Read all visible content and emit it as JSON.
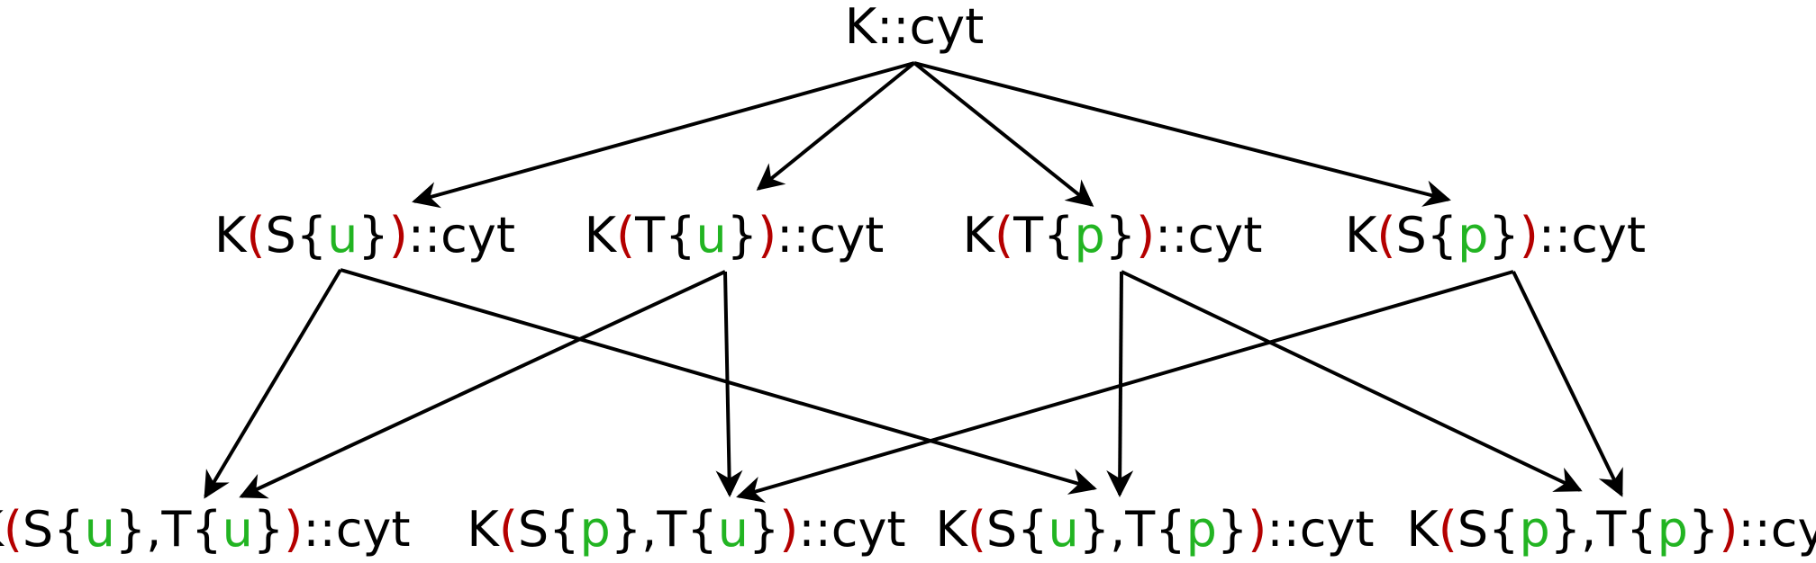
{
  "colors": {
    "text": "#000000",
    "paren": "#b40000",
    "state": "#22b422",
    "edge": "#000000"
  },
  "nodes": [
    {
      "id": "root",
      "segments": [
        {
          "text": "K::cyt",
          "role": "text"
        }
      ]
    },
    {
      "id": "S_u",
      "segments": [
        {
          "text": "K",
          "role": "text"
        },
        {
          "text": "(",
          "role": "paren"
        },
        {
          "text": "S{",
          "role": "text"
        },
        {
          "text": "u",
          "role": "state"
        },
        {
          "text": "}",
          "role": "text"
        },
        {
          "text": ")",
          "role": "paren"
        },
        {
          "text": "::cyt",
          "role": "text"
        }
      ]
    },
    {
      "id": "T_u",
      "segments": [
        {
          "text": "K",
          "role": "text"
        },
        {
          "text": "(",
          "role": "paren"
        },
        {
          "text": "T{",
          "role": "text"
        },
        {
          "text": "u",
          "role": "state"
        },
        {
          "text": "}",
          "role": "text"
        },
        {
          "text": ")",
          "role": "paren"
        },
        {
          "text": "::cyt",
          "role": "text"
        }
      ]
    },
    {
      "id": "T_p",
      "segments": [
        {
          "text": "K",
          "role": "text"
        },
        {
          "text": "(",
          "role": "paren"
        },
        {
          "text": "T{",
          "role": "text"
        },
        {
          "text": "p",
          "role": "state"
        },
        {
          "text": "}",
          "role": "text"
        },
        {
          "text": ")",
          "role": "paren"
        },
        {
          "text": "::cyt",
          "role": "text"
        }
      ]
    },
    {
      "id": "S_p",
      "segments": [
        {
          "text": "K",
          "role": "text"
        },
        {
          "text": "(",
          "role": "paren"
        },
        {
          "text": "S{",
          "role": "text"
        },
        {
          "text": "p",
          "role": "state"
        },
        {
          "text": "}",
          "role": "text"
        },
        {
          "text": ")",
          "role": "paren"
        },
        {
          "text": "::cyt",
          "role": "text"
        }
      ]
    },
    {
      "id": "Su_Tu",
      "segments": [
        {
          "text": "K",
          "role": "text"
        },
        {
          "text": "(",
          "role": "paren"
        },
        {
          "text": "S{",
          "role": "text"
        },
        {
          "text": "u",
          "role": "state"
        },
        {
          "text": "},T{",
          "role": "text"
        },
        {
          "text": "u",
          "role": "state"
        },
        {
          "text": "}",
          "role": "text"
        },
        {
          "text": ")",
          "role": "paren"
        },
        {
          "text": "::cyt",
          "role": "text"
        }
      ]
    },
    {
      "id": "Sp_Tu",
      "segments": [
        {
          "text": "K",
          "role": "text"
        },
        {
          "text": "(",
          "role": "paren"
        },
        {
          "text": "S{",
          "role": "text"
        },
        {
          "text": "p",
          "role": "state"
        },
        {
          "text": "},T{",
          "role": "text"
        },
        {
          "text": "u",
          "role": "state"
        },
        {
          "text": "}",
          "role": "text"
        },
        {
          "text": ")",
          "role": "paren"
        },
        {
          "text": "::cyt",
          "role": "text"
        }
      ]
    },
    {
      "id": "Su_Tp",
      "segments": [
        {
          "text": "K",
          "role": "text"
        },
        {
          "text": "(",
          "role": "paren"
        },
        {
          "text": "S{",
          "role": "text"
        },
        {
          "text": "u",
          "role": "state"
        },
        {
          "text": "},T{",
          "role": "text"
        },
        {
          "text": "p",
          "role": "state"
        },
        {
          "text": "}",
          "role": "text"
        },
        {
          "text": ")",
          "role": "paren"
        },
        {
          "text": "::cyt",
          "role": "text"
        }
      ]
    },
    {
      "id": "Sp_Tp",
      "segments": [
        {
          "text": "K",
          "role": "text"
        },
        {
          "text": "(",
          "role": "paren"
        },
        {
          "text": "S{",
          "role": "text"
        },
        {
          "text": "p",
          "role": "state"
        },
        {
          "text": "},T{",
          "role": "text"
        },
        {
          "text": "p",
          "role": "state"
        },
        {
          "text": "}",
          "role": "text"
        },
        {
          "text": ")",
          "role": "paren"
        },
        {
          "text": "::cyt",
          "role": "text"
        }
      ]
    }
  ],
  "edges": [
    {
      "from": "root",
      "to": "S_u"
    },
    {
      "from": "root",
      "to": "T_u"
    },
    {
      "from": "root",
      "to": "T_p"
    },
    {
      "from": "root",
      "to": "S_p"
    },
    {
      "from": "S_u",
      "to": "Su_Tu"
    },
    {
      "from": "S_u",
      "to": "Su_Tp"
    },
    {
      "from": "T_u",
      "to": "Su_Tu"
    },
    {
      "from": "T_u",
      "to": "Sp_Tu"
    },
    {
      "from": "T_p",
      "to": "Su_Tp"
    },
    {
      "from": "T_p",
      "to": "Sp_Tp"
    },
    {
      "from": "S_p",
      "to": "Sp_Tu"
    },
    {
      "from": "S_p",
      "to": "Sp_Tp"
    }
  ]
}
